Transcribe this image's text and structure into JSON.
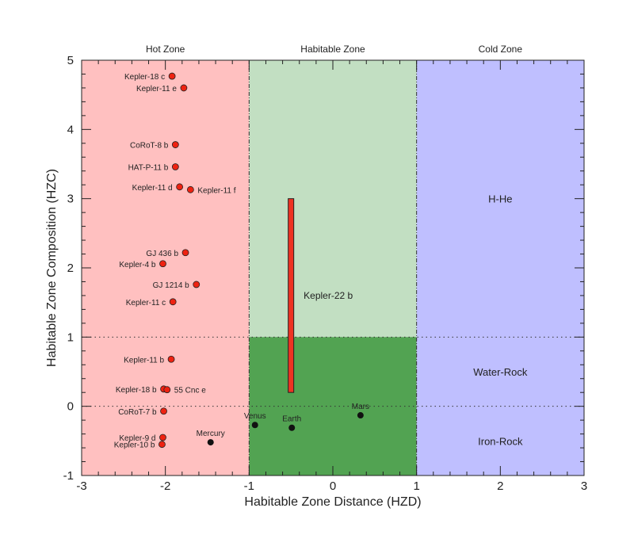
{
  "chart_data": {
    "type": "scatter",
    "xlabel": "Habitable Zone Distance (HZD)",
    "ylabel": "Habitable Zone Composition (HZC)",
    "xlim": [
      -3,
      3
    ],
    "ylim": [
      -1,
      5
    ],
    "xticks": [
      "-3",
      "-2",
      "-1",
      "0",
      "1",
      "2",
      "3"
    ],
    "yticks": [
      "-1",
      "0",
      "1",
      "2",
      "3",
      "4",
      "5"
    ],
    "grid": false,
    "zones": [
      {
        "label": "Hot Zone",
        "x": [
          -3,
          -1
        ],
        "color": "#ffc0c0"
      },
      {
        "label": "Habitable Zone",
        "x": [
          -1,
          1
        ],
        "color": "#c2dfc2",
        "lower_color": "#52a352"
      },
      {
        "label": "Cold Zone",
        "x": [
          1,
          3
        ],
        "color": "#bfbfff"
      }
    ],
    "composition_labels": [
      {
        "label": "H-He",
        "y": 3
      },
      {
        "label": "Water-Rock",
        "y": 0.5
      },
      {
        "label": "Iron-Rock",
        "y": -0.5
      }
    ],
    "dotted_lines_y": [
      0,
      1
    ],
    "exoplanets": {
      "color": "#ee2211",
      "points": [
        {
          "name": "Kepler-18 c",
          "x": -1.92,
          "y": 4.77,
          "label_side": "left"
        },
        {
          "name": "Kepler-11 e",
          "x": -1.78,
          "y": 4.6,
          "label_side": "left"
        },
        {
          "name": "CoRoT-8 b",
          "x": -1.88,
          "y": 3.78,
          "label_side": "left"
        },
        {
          "name": "HAT-P-11 b",
          "x": -1.88,
          "y": 3.46,
          "label_side": "left"
        },
        {
          "name": "Kepler-11 d",
          "x": -1.83,
          "y": 3.17,
          "label_side": "left"
        },
        {
          "name": "Kepler-11 f",
          "x": -1.7,
          "y": 3.13,
          "label_side": "right"
        },
        {
          "name": "GJ 436 b",
          "x": -1.76,
          "y": 2.22,
          "label_side": "left"
        },
        {
          "name": "Kepler-4 b",
          "x": -2.03,
          "y": 2.06,
          "label_side": "left"
        },
        {
          "name": "GJ 1214 b",
          "x": -1.63,
          "y": 1.76,
          "label_side": "left"
        },
        {
          "name": "Kepler-11 c",
          "x": -1.91,
          "y": 1.51,
          "label_side": "left"
        },
        {
          "name": "Kepler-11 b",
          "x": -1.93,
          "y": 0.68,
          "label_side": "left"
        },
        {
          "name": "Kepler-18 b",
          "x": -2.02,
          "y": 0.25,
          "label_side": "left"
        },
        {
          "name": "55 Cnc e",
          "x": -1.98,
          "y": 0.24,
          "label_side": "right"
        },
        {
          "name": "CoRoT-7 b",
          "x": -2.02,
          "y": -0.07,
          "label_side": "left"
        },
        {
          "name": "Kepler-9 d",
          "x": -2.03,
          "y": -0.45,
          "label_side": "left"
        },
        {
          "name": "Kepler-10 b",
          "x": -2.04,
          "y": -0.55,
          "label_side": "left"
        }
      ]
    },
    "solar_system": {
      "color": "#111111",
      "points": [
        {
          "name": "Mercury",
          "x": -1.46,
          "y": -0.52
        },
        {
          "name": "Venus",
          "x": -0.93,
          "y": -0.27
        },
        {
          "name": "Earth",
          "x": -0.49,
          "y": -0.31
        },
        {
          "name": "Mars",
          "x": 0.33,
          "y": -0.13
        }
      ]
    },
    "range_bar": {
      "name": "Kepler-22 b",
      "x": -0.5,
      "y": [
        0.2,
        3.0
      ],
      "color": "#ee3322"
    }
  }
}
